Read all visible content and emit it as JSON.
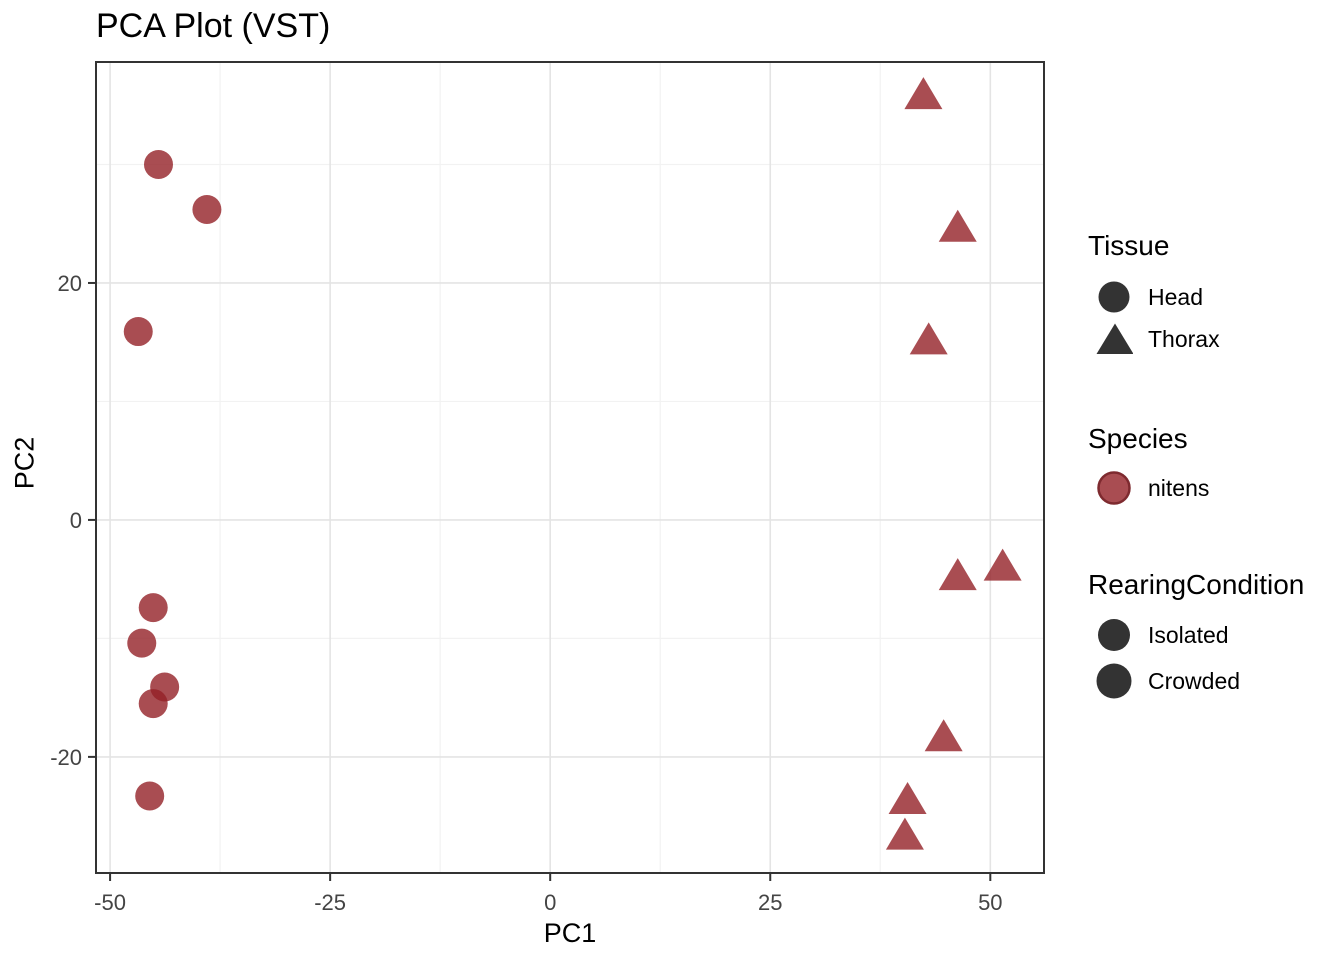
{
  "title": "PCA Plot (VST)",
  "colors": {
    "point_fill": "#932127",
    "point_edge": "#7E2A2F",
    "dark_key": "#333333",
    "grid_major": "#e4e4e4",
    "grid_minor": "#f2f2f2",
    "panel_border": "#333333",
    "tick_mark": "#333333",
    "tick_text": "#444444"
  },
  "chart_data": {
    "type": "scatter",
    "title": "PCA Plot (VST)",
    "xlabel": "PC1",
    "ylabel": "PC2",
    "xlim": [
      -51.6,
      56.1
    ],
    "ylim": [
      -29.8,
      38.65
    ],
    "x_ticks": [
      -50,
      -25,
      0,
      25,
      50
    ],
    "y_ticks": [
      -20,
      0,
      20
    ],
    "x_minor": [
      -37.5,
      -12.5,
      12.5,
      37.5
    ],
    "y_minor": [
      -10,
      10,
      30
    ],
    "grid": true,
    "legend_position": "right",
    "series": [
      {
        "name": "Head",
        "shape": "circle",
        "species": "nitens",
        "points": [
          [
            -44.5,
            30.0
          ],
          [
            -39.0,
            26.2
          ],
          [
            -46.8,
            15.9
          ],
          [
            -45.1,
            -7.4
          ],
          [
            -46.4,
            -10.4
          ],
          [
            -43.8,
            -14.1
          ],
          [
            -45.1,
            -15.5
          ],
          [
            -45.5,
            -23.3
          ]
        ]
      },
      {
        "name": "Thorax",
        "shape": "triangle",
        "species": "nitens",
        "points": [
          [
            42.4,
            35.9
          ],
          [
            46.3,
            24.7
          ],
          [
            43.0,
            15.2
          ],
          [
            46.3,
            -4.7
          ],
          [
            51.4,
            -3.9
          ],
          [
            44.7,
            -18.3
          ],
          [
            40.6,
            -23.6
          ],
          [
            40.3,
            -26.6
          ]
        ]
      }
    ]
  },
  "legend": {
    "tissue": {
      "title": "Tissue",
      "items": [
        {
          "label": "Head",
          "shape": "circle"
        },
        {
          "label": "Thorax",
          "shape": "triangle"
        }
      ]
    },
    "species": {
      "title": "Species",
      "items": [
        {
          "label": "nitens",
          "shape": "circle"
        }
      ]
    },
    "rearing": {
      "title": "RearingCondition",
      "items": [
        {
          "label": "Isolated",
          "shape": "circle"
        },
        {
          "label": "Crowded",
          "shape": "circle"
        }
      ]
    }
  }
}
